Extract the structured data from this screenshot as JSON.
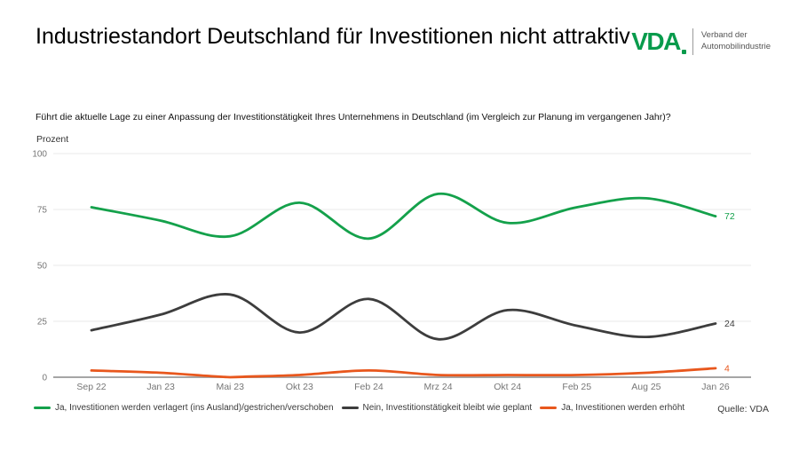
{
  "header": {
    "title": "Industriestandort Deutschland für Investitionen nicht attraktiv",
    "logo": {
      "mark": "VDA",
      "caption_line1": "Verband der",
      "caption_line2": "Automobilindustrie",
      "brand_green": "#089b4c"
    }
  },
  "chart": {
    "question": "Führt die aktuelle Lage zu einer Anpassung der Investitionstätigkeit Ihres Unternehmens in Deutschland (im Vergleich zur Planung im vergangenen Jahr)?",
    "source": "Quelle: VDA"
  },
  "chart_data": {
    "type": "line",
    "title": "Industriestandort Deutschland für Investitionen nicht attraktiv",
    "xlabel": "",
    "ylabel": "Prozent",
    "ylim": [
      0,
      100
    ],
    "yticks": [
      0,
      25,
      50,
      75,
      100
    ],
    "grid": true,
    "legend_position": "bottom",
    "categories": [
      "Sep 22",
      "Jan 23",
      "Mai 23",
      "Okt 23",
      "Feb 24",
      "Mrz 24",
      "Okt 24",
      "Feb 25",
      "Aug 25",
      "Jan 26"
    ],
    "series": [
      {
        "name": "Ja, Investitionen werden verlagert (ins Ausland)/gestrichen/verschoben",
        "color": "#14a14b",
        "values": [
          76,
          70,
          63,
          78,
          62,
          82,
          69,
          76,
          80,
          72
        ],
        "end_label": "72"
      },
      {
        "name": "Nein, Investitionstätigkeit bleibt wie geplant",
        "color": "#3d3d3d",
        "values": [
          21,
          28,
          37,
          20,
          35,
          17,
          30,
          23,
          18,
          24
        ],
        "end_label": "24"
      },
      {
        "name": "Ja, Investitionen werden erhöht",
        "color": "#e8571d",
        "values": [
          3,
          2,
          0,
          1,
          3,
          1,
          1,
          1,
          2,
          4
        ],
        "end_label": "4"
      }
    ],
    "axis_colors": {
      "grid": "#e8e8e8",
      "baseline": "#a6a6a6",
      "tick_text": "#767676"
    }
  }
}
